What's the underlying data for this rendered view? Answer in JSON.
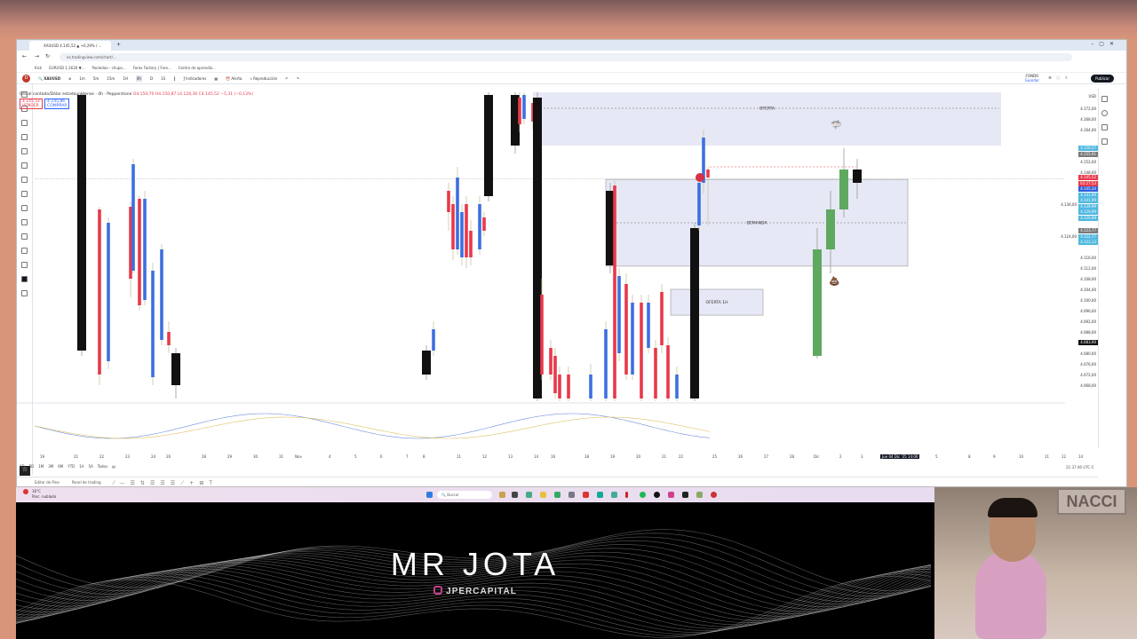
{
  "browser": {
    "tab_title": "XAUUSD 4.145,52 ▲ +0,29% / ...",
    "url": "es.tradingview.com/chart/...",
    "bookmarks": [
      "Kick",
      "EURUSD 1,1626 ▼...",
      "Pooledoo - chupo...",
      "Forex Factory | Fore...",
      "Centro de aprendiz..."
    ]
  },
  "toolbar": {
    "symbol": "XAUUSD",
    "intervals": [
      "1m",
      "5m",
      "15m",
      "1H",
      "4h",
      "D",
      "1S"
    ],
    "indicators": "Indicadores",
    "alert": "Alerta",
    "replay": "Reproducción",
    "layout": "FONDO",
    "layout_sub": "Guardar",
    "publish": "Publicar",
    "notif_count": "1"
  },
  "legend": {
    "title": "Oro al contado/Dólar estadounidense · 4h · Pepperstone",
    "ohlc": "O4.150,70 H4.150,87 L4.128,36 C4.145,52 −5,31 (−0,13%)",
    "sell": "4.145,52",
    "buy": "4.145,86",
    "sell_label": "VENDER",
    "buy_label": "COMPRAR"
  },
  "price_axis": {
    "currency": "USD",
    "labels": [
      "4.172,00",
      "4.168,00",
      "4.164,00",
      "4.152,00",
      "4.148,00",
      "4.136,00",
      "4.124,00",
      "4.116,00",
      "4.112,00",
      "4.108,00",
      "4.104,00",
      "4.100,00",
      "4.096,00",
      "4.092,00",
      "4.088,00",
      "4.080,00",
      "4.076,00",
      "4.072,00",
      "4.068,00"
    ],
    "badges": [
      {
        "text": "4.156,57",
        "color": "#4fb8e0",
        "price": 4157
      },
      {
        "text": "4.155,91",
        "color": "#7a7a7a",
        "price": 4155
      },
      {
        "text": "4.145,52",
        "color": "#e8394a",
        "price": 4146
      },
      {
        "text": "02:27:53",
        "color": "#e8394a",
        "price": 4144.6
      },
      {
        "text": "4.145,34",
        "color": "#2f5fd8",
        "price": 4143.2
      },
      {
        "text": "4.141,99",
        "color": "#4fb8e0",
        "price": 4141.8
      },
      {
        "text": "4.141,99",
        "color": "#4fb8e0",
        "price": 4140.4
      },
      {
        "text": "4.139,99",
        "color": "#4fb8e0",
        "price": 4139
      },
      {
        "text": "4.129,99",
        "color": "#4fb8e0",
        "price": 4137.6
      },
      {
        "text": "4.129,99",
        "color": "#4fb8e0",
        "price": 4136.2
      },
      {
        "text": "4.123,77",
        "color": "#7a7a7a",
        "price": 4126
      },
      {
        "text": "4.122,77",
        "color": "#4fb8e0",
        "price": 4124.6
      },
      {
        "text": "4.122,13",
        "color": "#4fb8e0",
        "price": 4123.2
      },
      {
        "text": "4.083,90",
        "color": "#111111",
        "price": 4083.9
      }
    ]
  },
  "zones": [
    {
      "label": "OFERTA",
      "top": 4178,
      "bottom": 4158
    },
    {
      "label": "DEMANDA",
      "top": 4145.3,
      "bottom": 4112.7
    },
    {
      "label": "OFERTA 1H",
      "top": 4104,
      "bottom": 4094.3
    }
  ],
  "chart_data": {
    "type": "candlestick",
    "price_range": [
      4062.7,
      4178.7
    ],
    "current_price": 4145.52,
    "colors": {
      "up": "#3d6fe0",
      "down": "#e8394a",
      "up2": "#5fa85f",
      "down2": "#111111"
    },
    "candles": [
      [
        4177,
        4081,
        4178,
        4079,
        "down2"
      ],
      [
        4134,
        4072,
        4135,
        4068,
        "down"
      ],
      [
        4077,
        4129,
        4131,
        4074,
        "up"
      ],
      [
        4135,
        4108,
        4137,
        4101,
        "down"
      ],
      [
        4111,
        4151,
        4153,
        4110,
        "up"
      ],
      [
        4138,
        4098,
        4139,
        4096,
        "down"
      ],
      [
        4100,
        4138,
        4141,
        4098,
        "up"
      ],
      [
        4111,
        4071,
        4114,
        4068,
        "up"
      ],
      [
        4085,
        4119,
        4121,
        4083,
        "up"
      ],
      [
        4088,
        4083,
        4092,
        4080,
        "down"
      ],
      [
        4080,
        4068,
        4082,
        4063,
        "down2"
      ],
      [
        4081,
        4072,
        4083,
        4070,
        "down2"
      ],
      [
        4081,
        4089,
        4092,
        4079,
        "up"
      ],
      [
        4141,
        4133,
        4144,
        4126,
        "down"
      ],
      [
        4136,
        4119,
        4139,
        4115,
        "down"
      ],
      [
        4119,
        4146,
        4150,
        4117,
        "up"
      ],
      [
        4116,
        4133,
        4136,
        4113,
        "up"
      ],
      [
        4136,
        4116,
        4139,
        4112,
        "down"
      ],
      [
        4126,
        4116,
        4130,
        4113,
        "down"
      ],
      [
        4119,
        4136,
        4139,
        4117,
        "up"
      ],
      [
        4131,
        4126,
        4133,
        4124,
        "down"
      ],
      [
        4177,
        4139,
        4178,
        4137,
        "down2"
      ],
      [
        4177,
        4158,
        4178,
        4155,
        "down2"
      ],
      [
        4176,
        4166,
        4178,
        4163,
        "down"
      ],
      [
        4168,
        4177,
        4178,
        4166,
        "up"
      ],
      [
        4174,
        4167,
        4176,
        4164,
        "down"
      ],
      [
        4176,
        4063,
        4178,
        4062,
        "down2"
      ],
      [
        4102,
        4072,
        4108,
        4070,
        "down"
      ],
      [
        4082,
        4072,
        4085,
        4070,
        "down"
      ],
      [
        4079,
        4065,
        4082,
        4063,
        "down"
      ],
      [
        4072,
        4063,
        4075,
        4062,
        "down"
      ],
      [
        4072,
        4063,
        4075,
        4062,
        "down"
      ],
      [
        4063,
        4072,
        4076,
        4062,
        "up"
      ],
      [
        4063,
        4089,
        4092,
        4062,
        "up"
      ],
      [
        4141,
        4113,
        4144,
        4110,
        "down2"
      ],
      [
        4143,
        4063,
        4145,
        4062,
        "down"
      ],
      [
        4080,
        4109,
        4112,
        4077,
        "up"
      ],
      [
        4106,
        4072,
        4110,
        4070,
        "down"
      ],
      [
        4072,
        4099,
        4102,
        4070,
        "up"
      ],
      [
        4099,
        4063,
        4102,
        4062,
        "down"
      ],
      [
        4082,
        4099,
        4102,
        4080,
        "up"
      ],
      [
        4082,
        4063,
        4085,
        4062,
        "down"
      ],
      [
        4103,
        4083,
        4106,
        4080,
        "down"
      ],
      [
        4083,
        4063,
        4086,
        4062,
        "down"
      ],
      [
        4063,
        4072,
        4075,
        4062,
        "up"
      ],
      [
        4127,
        4063,
        4129,
        4062,
        "down2"
      ],
      [
        4128,
        4144,
        4147,
        4126,
        "up"
      ],
      [
        4144,
        4161,
        4164,
        4140,
        "up"
      ],
      [
        4149,
        4146,
        4150,
        4128,
        "down"
      ],
      [
        4079,
        4119,
        4127,
        4078,
        "up2"
      ],
      [
        4119,
        4134,
        4141,
        4110,
        "up2"
      ],
      [
        4134,
        4149,
        4157,
        4131,
        "up2"
      ],
      [
        4149,
        4144,
        4153,
        4138,
        "down2"
      ]
    ]
  },
  "time_axis": [
    "19",
    "21",
    "22",
    "23",
    "24",
    "26",
    "28",
    "29",
    "30",
    "31",
    "Nov",
    "4",
    "5",
    "6",
    "7",
    "8",
    "11",
    "12",
    "13",
    "14",
    "16",
    "18",
    "19",
    "20",
    "21",
    "22",
    "25",
    "26",
    "27",
    "28",
    "Dic",
    "2",
    "3",
    "Jue 04 Dic '25 14:00",
    "5",
    "8",
    "9",
    "10",
    "11",
    "12",
    "14"
  ],
  "clock": "21:37:46 UTC-5",
  "ranges": [
    "1D",
    "5D",
    "1M",
    "3M",
    "6M",
    "YTD",
    "1A",
    "5A",
    "Todos"
  ],
  "bottom_tabs": [
    "Editor de Pine",
    "Panel de trading"
  ],
  "taskbar": {
    "weather_temp": "16°C",
    "weather_desc": "Parc. nublado",
    "search": "Buscar"
  },
  "banner": {
    "title": "MR JOTA",
    "handle": "JPERCAPITAL"
  },
  "webcam": {
    "sign": "NACCI"
  }
}
